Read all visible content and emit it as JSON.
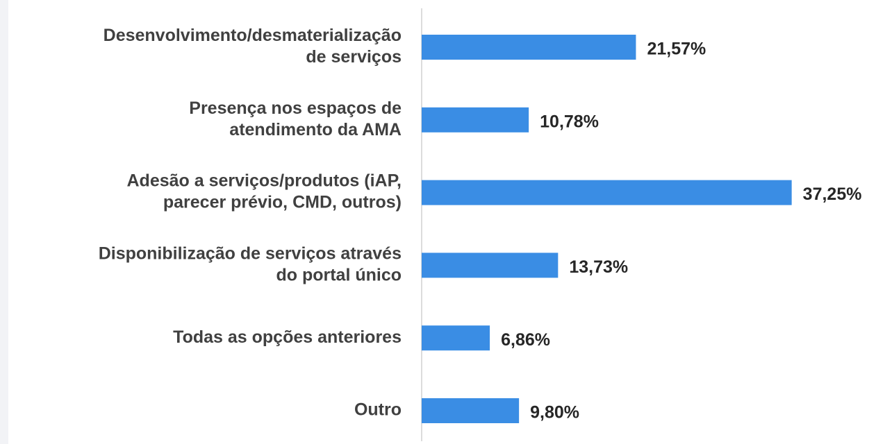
{
  "chart_data": {
    "type": "barh",
    "categories": [
      [
        "Desenvolvimento/desmaterialização",
        "de serviços"
      ],
      [
        "Presença nos espaços de",
        "atendimento da AMA"
      ],
      [
        "Adesão a serviços/produtos (iAP,",
        "parecer prévio, CMD, outros)"
      ],
      [
        "Disponibilização de serviços através",
        "do portal único"
      ],
      [
        "Todas as opções anteriores"
      ],
      [
        "Outro"
      ]
    ],
    "values": [
      21.57,
      10.78,
      37.25,
      13.73,
      6.86,
      9.8
    ],
    "value_labels": [
      "21,57%",
      "10,78%",
      "37,25%",
      "13,73%",
      "6,86%",
      "9,80%"
    ],
    "color": "#3a8de4"
  }
}
